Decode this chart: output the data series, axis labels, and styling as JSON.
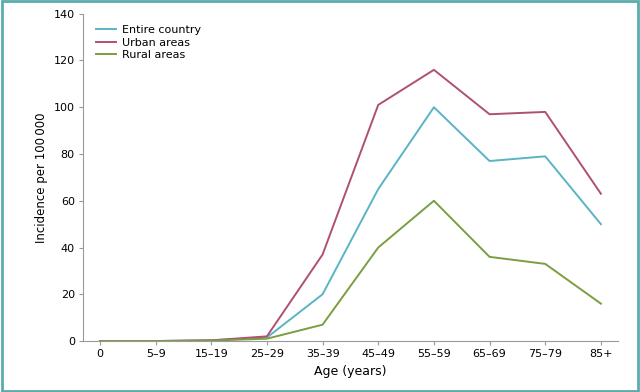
{
  "age_groups": [
    "0",
    "5–9",
    "15–19",
    "25–29",
    "35–39",
    "45–49",
    "55–59",
    "65–69",
    "75–79",
    "85+"
  ],
  "x_positions": [
    0,
    1,
    2,
    3,
    4,
    5,
    6,
    7,
    8,
    9
  ],
  "entire_country": [
    0.0,
    0.0,
    0.3,
    1.5,
    20.0,
    65.0,
    100.0,
    77.0,
    79.0,
    50.0
  ],
  "urban_areas": [
    0.0,
    0.0,
    0.3,
    2.0,
    37.0,
    101.0,
    116.0,
    97.0,
    98.0,
    63.0
  ],
  "rural_areas": [
    0.0,
    0.0,
    0.2,
    1.0,
    7.0,
    40.0,
    60.0,
    36.0,
    33.0,
    16.0
  ],
  "entire_country_color": "#5ab4c4",
  "urban_areas_color": "#b05070",
  "rural_areas_color": "#7a9e40",
  "ylabel": "Incidence per 100 000",
  "xlabel": "Age (years)",
  "ylim": [
    0,
    140
  ],
  "yticks": [
    0,
    20,
    40,
    60,
    80,
    100,
    120,
    140
  ],
  "legend_labels": [
    "Entire country",
    "Urban areas",
    "Rural areas"
  ],
  "border_color": "#5aacac",
  "background_color": "#ffffff",
  "linewidth": 1.4
}
